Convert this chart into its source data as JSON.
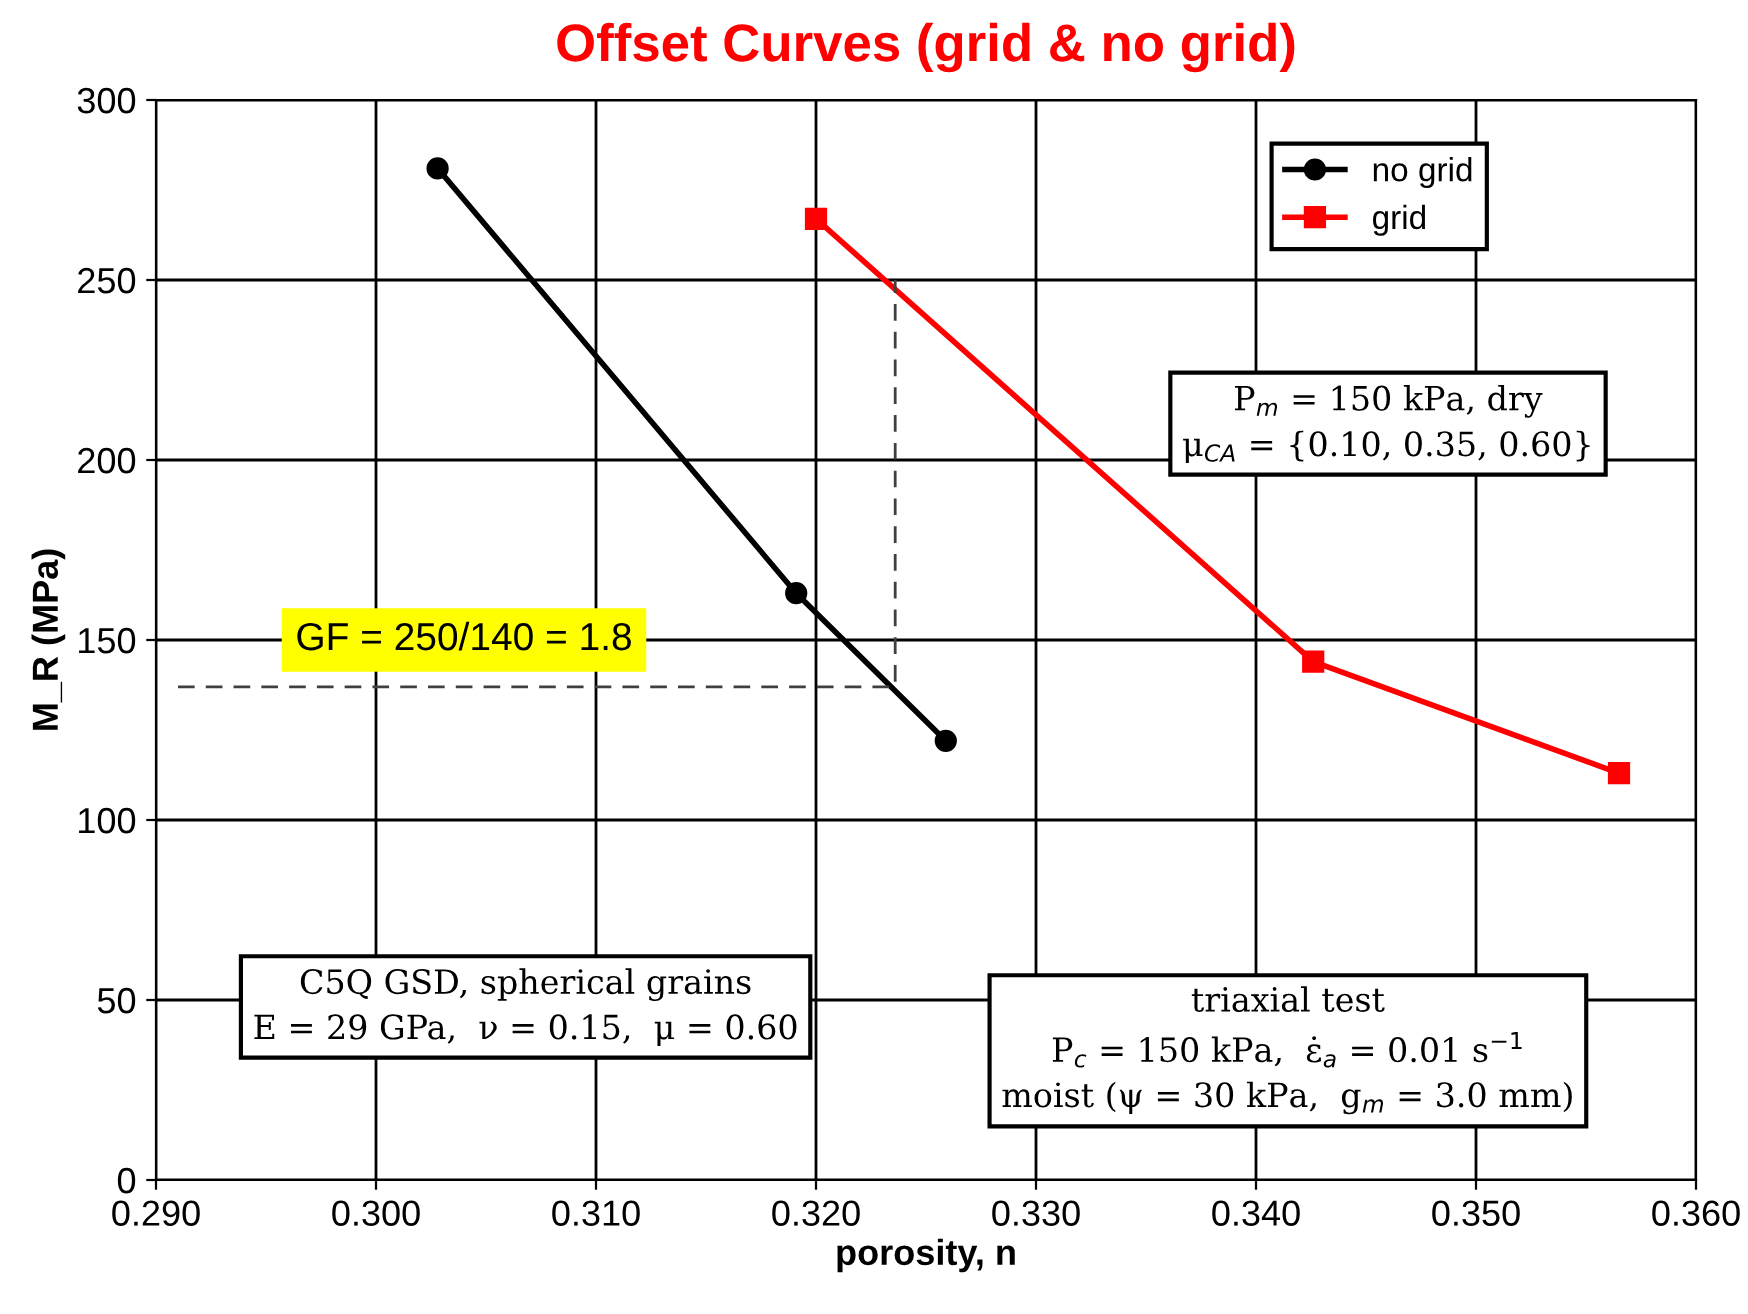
{
  "chart_data": {
    "type": "line",
    "title": "Offset Curves (grid & no grid)",
    "xlabel": "porosity, n",
    "ylabel": "M_R (MPa)",
    "series": [
      {
        "name": "no grid",
        "color": "#000000",
        "marker": "circle",
        "x": [
          0.3028,
          0.3191,
          0.3259
        ],
        "values": [
          281,
          163,
          122
        ]
      },
      {
        "name": "grid",
        "color": "#ff0000",
        "marker": "square",
        "x": [
          0.32,
          0.3426,
          0.3565
        ],
        "values": [
          267,
          144,
          113
        ]
      },
      {
        "color": "#404040",
        "line_style": "dashed",
        "marker": "none",
        "x": [
          0.291,
          0.3236,
          0.3236
        ],
        "values": [
          137,
          137,
          250
        ]
      }
    ],
    "xlim": [
      0.29,
      0.36
    ],
    "xticks": [
      {
        "value": 0.29,
        "label": "0.290"
      },
      {
        "value": 0.3,
        "label": "0.300"
      },
      {
        "value": 0.31,
        "label": "0.310"
      },
      {
        "value": 0.32,
        "label": "0.320"
      },
      {
        "value": 0.33,
        "label": "0.330"
      },
      {
        "value": 0.34,
        "label": "0.340"
      },
      {
        "value": 0.35,
        "label": "0.350"
      },
      {
        "value": 0.36,
        "label": "0.360"
      }
    ],
    "ylim": [
      0,
      300
    ],
    "yticks": [
      0,
      50,
      100,
      150,
      200,
      250,
      300
    ],
    "grid": true,
    "legend": "top right",
    "annotations": [
      "P$_{m}$ = 150 kPa, dry\nμ$_{CA}$ = {0.10, 0.35, 0.60}",
      "GF = 250/140 = 1.8",
      "C5Q GSD, spherical grains\nE = 29 GPa,  ν = 0.15,  μ = 0.60",
      "triaxial test\nP$_{c}$ = 150 kPa,  ε̇$_{a}$ = 0.01 s$^{−1}$\nmoist (ψ = 30 kPa,  g$_{m}$ = 3.0 mm)"
    ]
  }
}
